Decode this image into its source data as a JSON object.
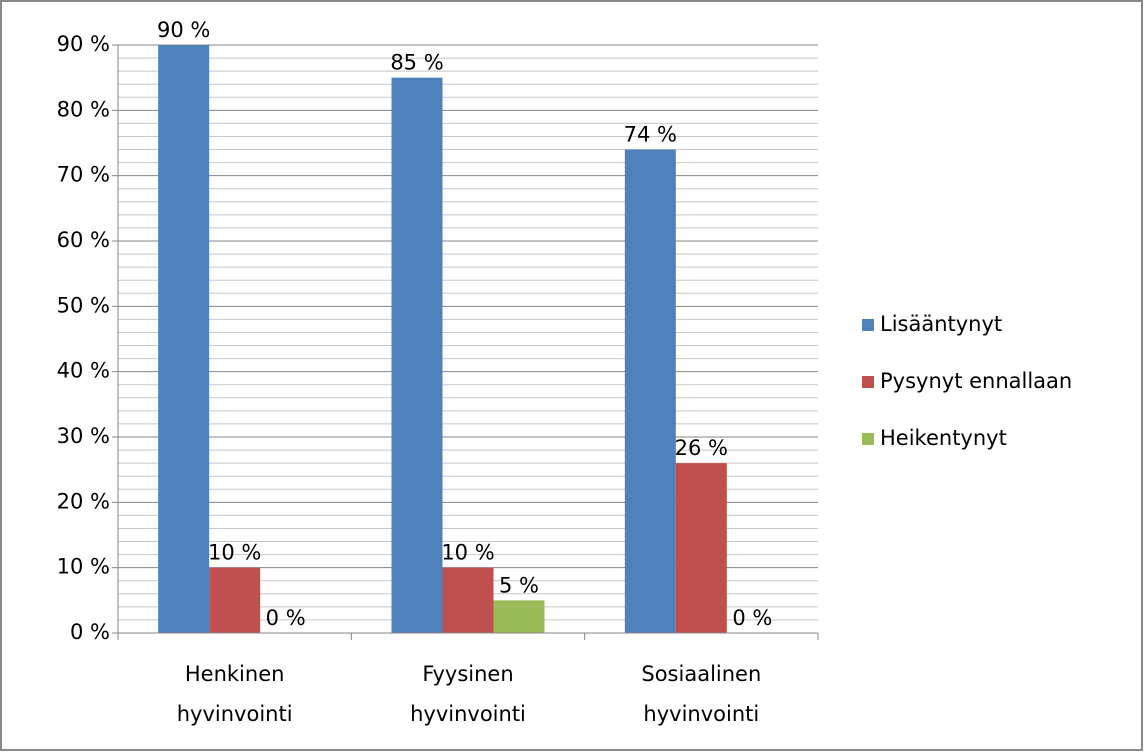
{
  "chart_data": {
    "type": "bar",
    "categories": [
      "Henkinen hyvinvointi",
      "Fyysinen hyvinvointi",
      "Sosiaalinen hyvinvointi"
    ],
    "series": [
      {
        "name": "Lisääntynyt",
        "color": "#4f81bd",
        "values": [
          90,
          85,
          74
        ],
        "value_labels": [
          "90 %",
          "85 %",
          "74 %"
        ]
      },
      {
        "name": "Pysynyt ennallaan",
        "color": "#c0504d",
        "values": [
          10,
          10,
          26
        ],
        "value_labels": [
          "10 %",
          "10 %",
          "26 %"
        ]
      },
      {
        "name": "Heikentynyt",
        "color": "#9bbb59",
        "values": [
          0,
          5,
          0
        ],
        "value_labels": [
          "0 %",
          "5 %",
          "0 %"
        ]
      }
    ],
    "ylim": [
      0,
      90
    ],
    "yticks": [
      {
        "value": 0,
        "label": "0 %"
      },
      {
        "value": 10,
        "label": "10 %"
      },
      {
        "value": 20,
        "label": "20 %"
      },
      {
        "value": 30,
        "label": "30 %"
      },
      {
        "value": 40,
        "label": "40 %"
      },
      {
        "value": 50,
        "label": "50 %"
      },
      {
        "value": 60,
        "label": "60 %"
      },
      {
        "value": 70,
        "label": "70 %"
      },
      {
        "value": 80,
        "label": "80 %"
      },
      {
        "value": 90,
        "label": "90 %"
      }
    ],
    "minor_yticks": [
      2,
      4,
      6,
      8,
      12,
      14,
      16,
      18,
      22,
      24,
      26,
      28,
      32,
      34,
      36,
      38,
      42,
      44,
      46,
      48,
      52,
      54,
      56,
      58,
      62,
      64,
      66,
      68,
      72,
      74,
      76,
      78,
      82,
      84,
      86,
      88
    ],
    "grid": true,
    "legend": "right"
  }
}
